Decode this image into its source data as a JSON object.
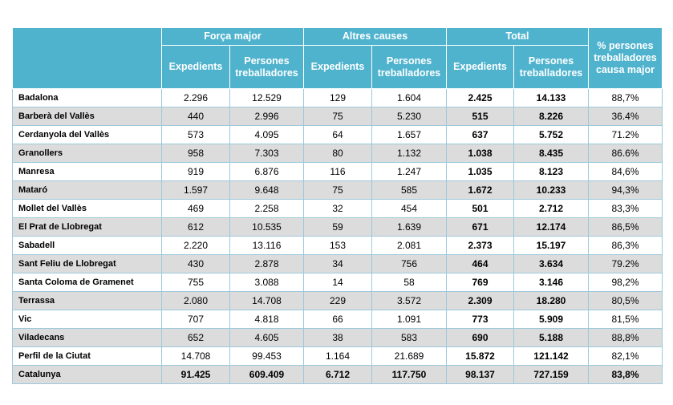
{
  "header": {
    "groups": [
      "Força major",
      "Altres causes",
      "Total"
    ],
    "pct": "% persones treballadores causa major",
    "sub": [
      "Expedients",
      "Persones treballadores",
      "Expedients",
      "Persones treballadores",
      "Expedients",
      "Persones treballadores"
    ]
  },
  "table": {
    "rows": [
      [
        "Badalona",
        "2.296",
        "12.529",
        "129",
        "1.604",
        "2.425",
        "14.133",
        "88,7%"
      ],
      [
        "Barberà del Vallès",
        "440",
        "2.996",
        "75",
        "5.230",
        "515",
        "8.226",
        "36.4%"
      ],
      [
        "Cerdanyola del Vallès",
        "573",
        "4.095",
        "64",
        "1.657",
        "637",
        "5.752",
        "71.2%"
      ],
      [
        "Granollers",
        "958",
        "7.303",
        "80",
        "1.132",
        "1.038",
        "8.435",
        "86.6%"
      ],
      [
        "Manresa",
        "919",
        "6.876",
        "116",
        "1.247",
        "1.035",
        "8.123",
        "84,6%"
      ],
      [
        "Mataró",
        "1.597",
        "9.648",
        "75",
        "585",
        "1.672",
        "10.233",
        "94,3%"
      ],
      [
        "Mollet del Vallès",
        "469",
        "2.258",
        "32",
        "454",
        "501",
        "2.712",
        "83,3%"
      ],
      [
        "El Prat de Llobregat",
        "612",
        "10.535",
        "59",
        "1.639",
        "671",
        "12.174",
        "86,5%"
      ],
      [
        "Sabadell",
        "2.220",
        "13.116",
        "153",
        "2.081",
        "2.373",
        "15.197",
        "86,3%"
      ],
      [
        "Sant Feliu de Llobregat",
        "430",
        "2.878",
        "34",
        "756",
        "464",
        "3.634",
        "79.2%"
      ],
      [
        "Santa Coloma de Gramenet",
        "755",
        "3.088",
        "14",
        "58",
        "769",
        "3.146",
        "98,2%"
      ],
      [
        "Terrassa",
        "2.080",
        "14.708",
        "229",
        "3.572",
        "2.309",
        "18.280",
        "80,5%"
      ],
      [
        "Vic",
        "707",
        "4.818",
        "66",
        "1.091",
        "773",
        "5.909",
        "81,5%"
      ],
      [
        "Viladecans",
        "652",
        "4.605",
        "38",
        "583",
        "690",
        "5.188",
        "88,8%"
      ],
      [
        "Perfil de la Ciutat",
        "14.708",
        "99.453",
        "1.164",
        "21.689",
        "15.872",
        "121.142",
        "82,1%"
      ],
      [
        "Catalunya",
        "91.425",
        "609.409",
        "6.712",
        "117.750",
        "98.137",
        "727.159",
        "83,8%"
      ]
    ]
  }
}
